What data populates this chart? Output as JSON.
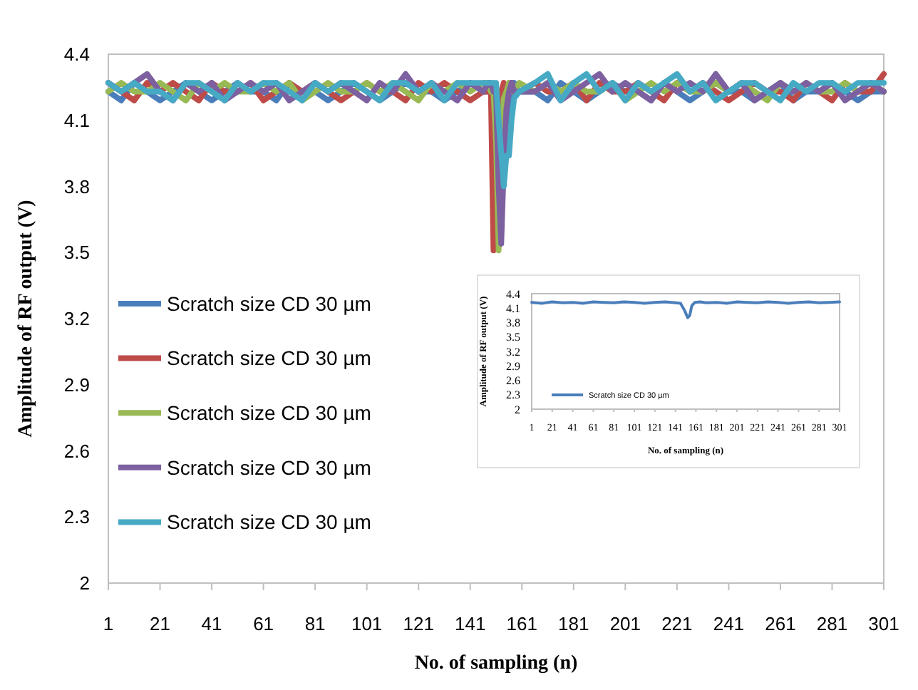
{
  "chart_data": [
    {
      "type": "line",
      "xlabel": "No. of sampling (n)",
      "ylabel": "Amplitude  of RF output  (V)",
      "xlim": [
        1,
        301
      ],
      "xticks": [
        1,
        21,
        41,
        61,
        81,
        101,
        121,
        141,
        161,
        181,
        201,
        221,
        241,
        261,
        281,
        301
      ],
      "ylim": [
        2,
        4.4
      ],
      "yticks": [
        2,
        2.3,
        2.6,
        2.9,
        3.2,
        3.5,
        3.8,
        4.1,
        4.4
      ],
      "legend": "left",
      "grid": false,
      "series": [
        {
          "name": "Scratch size CD 30 µm",
          "color": "#4a7ebb",
          "x": [
            1,
            6,
            11,
            16,
            21,
            26,
            31,
            36,
            41,
            46,
            51,
            56,
            61,
            66,
            71,
            76,
            81,
            86,
            91,
            96,
            101,
            106,
            111,
            116,
            121,
            126,
            131,
            136,
            141,
            146,
            148,
            149,
            150,
            151,
            152,
            153,
            154,
            155,
            156,
            157,
            158,
            160,
            166,
            171,
            176,
            181,
            186,
            191,
            196,
            201,
            206,
            211,
            216,
            221,
            226,
            231,
            236,
            241,
            246,
            251,
            256,
            261,
            266,
            271,
            276,
            281,
            286,
            291,
            296,
            301
          ],
          "values": [
            4.23,
            4.19,
            4.27,
            4.23,
            4.19,
            4.23,
            4.27,
            4.23,
            4.19,
            4.23,
            4.27,
            4.23,
            4.23,
            4.19,
            4.27,
            4.23,
            4.23,
            4.19,
            4.23,
            4.27,
            4.23,
            4.19,
            4.23,
            4.27,
            4.23,
            4.23,
            4.19,
            4.23,
            4.27,
            4.23,
            4.23,
            4.23,
            4.23,
            4.2,
            4.05,
            3.95,
            4.0,
            4.1,
            4.2,
            4.23,
            4.27,
            4.23,
            4.23,
            4.19,
            4.27,
            4.23,
            4.19,
            4.23,
            4.27,
            4.23,
            4.23,
            4.19,
            4.27,
            4.23,
            4.19,
            4.23,
            4.27,
            4.23,
            4.23,
            4.19,
            4.23,
            4.27,
            4.19,
            4.23,
            4.23,
            4.27,
            4.23,
            4.19,
            4.23,
            4.23
          ]
        },
        {
          "name": "Scratch size CD 30 µm",
          "color": "#be4b48",
          "x": [
            1,
            6,
            11,
            16,
            21,
            26,
            31,
            36,
            41,
            46,
            51,
            56,
            61,
            66,
            71,
            76,
            81,
            86,
            91,
            96,
            101,
            106,
            111,
            116,
            121,
            126,
            131,
            136,
            141,
            146,
            148,
            149,
            150,
            151,
            152,
            153,
            154,
            155,
            156,
            157,
            158,
            160,
            166,
            171,
            176,
            181,
            186,
            191,
            196,
            201,
            206,
            211,
            216,
            221,
            226,
            231,
            236,
            241,
            246,
            251,
            256,
            261,
            266,
            271,
            276,
            281,
            286,
            291,
            296,
            301
          ],
          "values": [
            4.27,
            4.23,
            4.19,
            4.27,
            4.23,
            4.27,
            4.23,
            4.19,
            4.27,
            4.23,
            4.23,
            4.27,
            4.19,
            4.23,
            4.27,
            4.23,
            4.27,
            4.23,
            4.19,
            4.23,
            4.27,
            4.23,
            4.23,
            4.19,
            4.27,
            4.23,
            4.27,
            4.23,
            4.19,
            4.23,
            4.23,
            4.23,
            3.51,
            4.0,
            4.2,
            4.23,
            4.27,
            4.23,
            4.23,
            4.27,
            4.23,
            4.23,
            4.27,
            4.23,
            4.23,
            4.27,
            4.19,
            4.27,
            4.23,
            4.23,
            4.27,
            4.23,
            4.19,
            4.27,
            4.23,
            4.27,
            4.23,
            4.19,
            4.23,
            4.27,
            4.23,
            4.23,
            4.19,
            4.27,
            4.23,
            4.19,
            4.27,
            4.23,
            4.23,
            4.31
          ]
        },
        {
          "name": "Scratch size CD 30 µm",
          "color": "#98b954",
          "x": [
            1,
            6,
            11,
            16,
            21,
            26,
            31,
            36,
            41,
            46,
            51,
            56,
            61,
            66,
            71,
            76,
            81,
            86,
            91,
            96,
            101,
            106,
            111,
            116,
            121,
            126,
            131,
            136,
            141,
            146,
            148,
            149,
            150,
            151,
            152,
            153,
            154,
            155,
            156,
            157,
            158,
            160,
            166,
            171,
            176,
            181,
            186,
            191,
            196,
            201,
            206,
            211,
            216,
            221,
            226,
            231,
            236,
            241,
            246,
            251,
            256,
            261,
            266,
            271,
            276,
            281,
            286,
            291,
            296,
            301
          ],
          "values": [
            4.23,
            4.27,
            4.23,
            4.23,
            4.27,
            4.23,
            4.19,
            4.27,
            4.23,
            4.27,
            4.23,
            4.23,
            4.27,
            4.23,
            4.27,
            4.19,
            4.23,
            4.27,
            4.23,
            4.23,
            4.27,
            4.23,
            4.27,
            4.23,
            4.19,
            4.27,
            4.23,
            4.27,
            4.23,
            4.27,
            4.27,
            4.23,
            4.23,
            4.0,
            3.51,
            4.0,
            4.2,
            4.23,
            4.27,
            4.23,
            4.23,
            4.27,
            4.23,
            4.27,
            4.23,
            4.27,
            4.23,
            4.23,
            4.27,
            4.19,
            4.23,
            4.27,
            4.23,
            4.27,
            4.23,
            4.23,
            4.27,
            4.23,
            4.27,
            4.23,
            4.19,
            4.27,
            4.23,
            4.27,
            4.23,
            4.23,
            4.27,
            4.23,
            4.27,
            4.23
          ]
        },
        {
          "name": "Scratch size CD 30 µm",
          "color": "#7d60a0",
          "x": [
            1,
            6,
            11,
            16,
            21,
            26,
            31,
            36,
            41,
            46,
            51,
            56,
            61,
            66,
            71,
            76,
            81,
            86,
            91,
            96,
            101,
            106,
            111,
            116,
            121,
            126,
            131,
            136,
            141,
            146,
            148,
            149,
            150,
            151,
            152,
            153,
            154,
            155,
            156,
            157,
            158,
            160,
            166,
            171,
            176,
            181,
            186,
            191,
            196,
            201,
            206,
            211,
            216,
            221,
            226,
            231,
            236,
            241,
            246,
            251,
            256,
            261,
            266,
            271,
            276,
            281,
            286,
            291,
            296,
            301
          ],
          "values": [
            4.27,
            4.23,
            4.27,
            4.31,
            4.23,
            4.19,
            4.27,
            4.23,
            4.27,
            4.19,
            4.23,
            4.27,
            4.23,
            4.27,
            4.19,
            4.23,
            4.27,
            4.23,
            4.27,
            4.23,
            4.19,
            4.27,
            4.23,
            4.31,
            4.23,
            4.27,
            4.23,
            4.19,
            4.27,
            4.23,
            4.27,
            4.27,
            4.23,
            4.23,
            3.8,
            3.54,
            3.9,
            4.15,
            4.23,
            4.27,
            4.23,
            4.23,
            4.23,
            4.27,
            4.19,
            4.23,
            4.27,
            4.31,
            4.23,
            4.27,
            4.23,
            4.19,
            4.27,
            4.23,
            4.27,
            4.23,
            4.31,
            4.23,
            4.27,
            4.19,
            4.23,
            4.27,
            4.23,
            4.27,
            4.23,
            4.27,
            4.19,
            4.23,
            4.27,
            4.23
          ]
        },
        {
          "name": "Scratch size CD 30 µm",
          "color": "#46aac5",
          "x": [
            1,
            6,
            11,
            16,
            21,
            26,
            31,
            36,
            41,
            46,
            51,
            56,
            61,
            66,
            71,
            76,
            81,
            86,
            91,
            96,
            101,
            106,
            111,
            116,
            121,
            126,
            131,
            136,
            141,
            146,
            148,
            149,
            150,
            151,
            152,
            153,
            154,
            155,
            156,
            157,
            158,
            160,
            166,
            171,
            176,
            181,
            186,
            191,
            196,
            201,
            206,
            211,
            216,
            221,
            226,
            231,
            236,
            241,
            246,
            251,
            256,
            261,
            266,
            271,
            276,
            281,
            286,
            291,
            296,
            301
          ],
          "values": [
            4.27,
            4.23,
            4.27,
            4.23,
            4.23,
            4.19,
            4.27,
            4.27,
            4.23,
            4.19,
            4.27,
            4.23,
            4.27,
            4.27,
            4.23,
            4.19,
            4.27,
            4.23,
            4.27,
            4.27,
            4.23,
            4.19,
            4.27,
            4.27,
            4.23,
            4.27,
            4.19,
            4.27,
            4.27,
            4.27,
            4.27,
            4.27,
            4.27,
            4.27,
            4.1,
            3.95,
            3.8,
            3.94,
            3.94,
            4.1,
            4.2,
            4.23,
            4.27,
            4.31,
            4.19,
            4.27,
            4.31,
            4.23,
            4.27,
            4.19,
            4.27,
            4.23,
            4.27,
            4.31,
            4.23,
            4.27,
            4.19,
            4.23,
            4.27,
            4.27,
            4.23,
            4.19,
            4.27,
            4.23,
            4.27,
            4.27,
            4.23,
            4.27,
            4.27,
            4.27
          ]
        }
      ]
    },
    {
      "type": "line",
      "xlabel": "No. of sampling (n)",
      "ylabel": "Amplitude of RF output  (V)",
      "xlim": [
        1,
        301
      ],
      "xticks": [
        1,
        21,
        41,
        61,
        81,
        101,
        121,
        141,
        161,
        181,
        201,
        221,
        241,
        261,
        281,
        301
      ],
      "ylim": [
        2,
        4.4
      ],
      "yticks": [
        2,
        2.3,
        2.6,
        2.9,
        3.2,
        3.5,
        3.8,
        4.1,
        4.4
      ],
      "legend": "bottom left",
      "grid": false,
      "series": [
        {
          "name": "Scratch size CD 30 µm",
          "color": "#4a7ebb",
          "x": [
            1,
            11,
            21,
            31,
            41,
            51,
            61,
            71,
            81,
            91,
            101,
            111,
            121,
            131,
            141,
            146,
            150,
            153,
            155,
            157,
            160,
            165,
            171,
            181,
            191,
            201,
            211,
            221,
            231,
            241,
            251,
            261,
            271,
            281,
            291,
            301
          ],
          "values": [
            4.22,
            4.2,
            4.23,
            4.21,
            4.22,
            4.2,
            4.23,
            4.22,
            4.21,
            4.23,
            4.22,
            4.2,
            4.22,
            4.23,
            4.21,
            4.2,
            4.05,
            3.9,
            3.95,
            4.15,
            4.22,
            4.23,
            4.21,
            4.22,
            4.2,
            4.23,
            4.22,
            4.21,
            4.23,
            4.22,
            4.2,
            4.22,
            4.23,
            4.21,
            4.22,
            4.23
          ]
        }
      ]
    }
  ]
}
